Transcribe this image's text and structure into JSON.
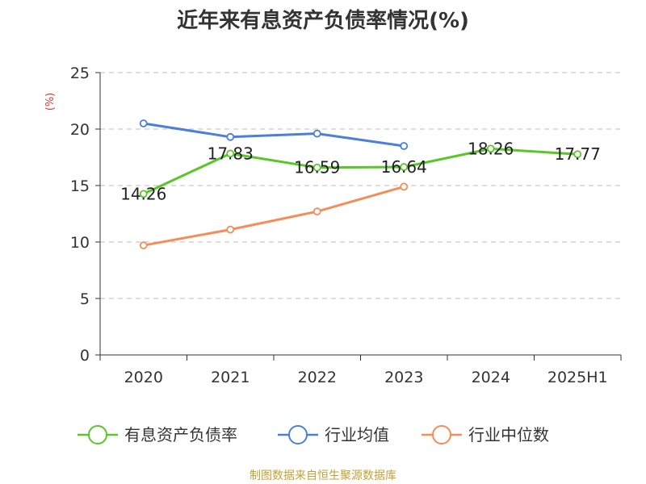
{
  "chart_data": {
    "type": "line",
    "title": "近年来有息资产负债率情况(%)",
    "unit_label": "(%)",
    "categories": [
      "2020",
      "2021",
      "2022",
      "2023",
      "2024",
      "2025H1"
    ],
    "ylim": [
      0,
      25
    ],
    "yticks": [
      0,
      5,
      10,
      15,
      20,
      25
    ],
    "grid": true,
    "legend_position": "bottom",
    "series": [
      {
        "name": "有息资产负债率",
        "color": "#5ac729",
        "values": [
          14.26,
          17.83,
          16.59,
          16.64,
          18.26,
          17.77
        ],
        "labels": [
          "14.26",
          "17.83",
          "16.59",
          "16.64",
          "18.26",
          "17.77"
        ]
      },
      {
        "name": "行业均值",
        "color": "#4a7fdb",
        "values": [
          20.5,
          19.3,
          19.6,
          18.5,
          null,
          null
        ]
      },
      {
        "name": "行业中位数",
        "color": "#f58d59",
        "values": [
          9.7,
          11.1,
          12.7,
          14.9,
          null,
          null
        ]
      }
    ],
    "source": "制图数据来自恒生聚源数据库",
    "colors": {
      "unit": "#e8302b",
      "source": "#c5a037",
      "axis": "#333333",
      "grid": "#c9c9c9"
    }
  }
}
